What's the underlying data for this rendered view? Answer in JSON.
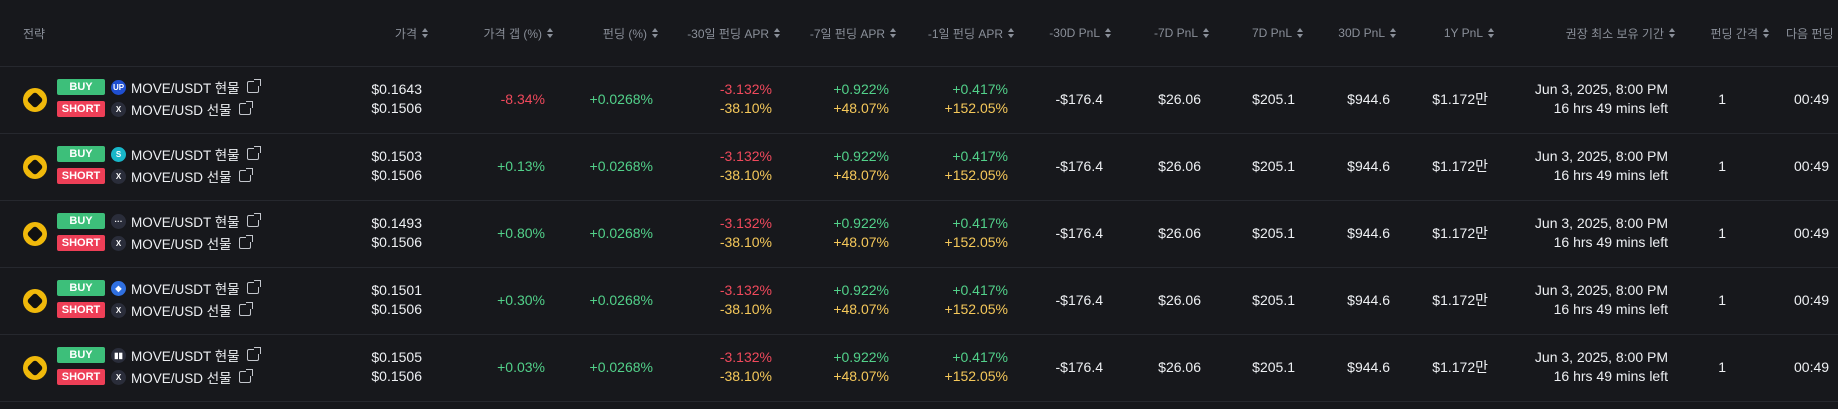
{
  "header": {
    "strategy": "전략",
    "price": "가격",
    "price_gap": "가격 갭 (%)",
    "funding": "펀딩 (%)",
    "apr_30d": "-30일 펀딩 APR",
    "apr_7d": "-7일 펀딩 APR",
    "apr_1d": "-1일 펀딩 APR",
    "pnl_neg30": "-30D PnL",
    "pnl_neg7": "-7D PnL",
    "pnl_7": "7D PnL",
    "pnl_30": "30D PnL",
    "pnl_1y": "1Y PnL",
    "min_hold": "권장 최소 보유 기간",
    "interval": "펀딩 간격",
    "next": "다음 펀딩"
  },
  "colors": {
    "buy": "#3dbf7a",
    "short": "#ee3f57",
    "positive": "#52d18a",
    "negative": "#f0495c",
    "accent": "#f5c85a"
  },
  "rows": [
    {
      "coin_icon": "move-coin-icon",
      "buy": {
        "badge": "BUY",
        "exchange_icon": "up-icon",
        "exchange_color": "#1f4fd1",
        "exchange_glyph": "UP",
        "pair": "MOVE/USDT 현물"
      },
      "short": {
        "badge": "SHORT",
        "exchange_icon": "x-icon",
        "exchange_color": "#2a2d3a",
        "exchange_glyph": "X",
        "pair": "MOVE/USD 선물"
      },
      "price_buy": "$0.1643",
      "price_short": "$0.1506",
      "price_gap": "-8.34%",
      "price_gap_sign": "red",
      "funding": "+0.0268%",
      "apr30_a": "-3.132%",
      "apr30_b": "-38.10%",
      "apr7_a": "+0.922%",
      "apr7_b": "+48.07%",
      "apr1_a": "+0.417%",
      "apr1_b": "+152.05%",
      "pnl_neg30": "-$176.4",
      "pnl_neg7": "$26.06",
      "pnl_7": "$205.1",
      "pnl_30": "$944.6",
      "pnl_1y": "$1.172만",
      "hold_date": "Jun 3, 2025, 8:00 PM",
      "hold_left": "16 hrs 49 mins left",
      "interval": "1",
      "next": "00:49"
    },
    {
      "coin_icon": "move-coin-icon",
      "buy": {
        "badge": "BUY",
        "exchange_icon": "swirl-icon",
        "exchange_color": "#18b7c9",
        "exchange_glyph": "S",
        "pair": "MOVE/USDT 현물"
      },
      "short": {
        "badge": "SHORT",
        "exchange_icon": "x-icon",
        "exchange_color": "#2a2d3a",
        "exchange_glyph": "X",
        "pair": "MOVE/USD 선물"
      },
      "price_buy": "$0.1503",
      "price_short": "$0.1506",
      "price_gap": "+0.13%",
      "price_gap_sign": "green",
      "funding": "+0.0268%",
      "apr30_a": "-3.132%",
      "apr30_b": "-38.10%",
      "apr7_a": "+0.922%",
      "apr7_b": "+48.07%",
      "apr1_a": "+0.417%",
      "apr1_b": "+152.05%",
      "pnl_neg30": "-$176.4",
      "pnl_neg7": "$26.06",
      "pnl_7": "$205.1",
      "pnl_30": "$944.6",
      "pnl_1y": "$1.172만",
      "hold_date": "Jun 3, 2025, 8:00 PM",
      "hold_left": "16 hrs 49 mins left",
      "interval": "1",
      "next": "00:49"
    },
    {
      "coin_icon": "move-coin-icon",
      "buy": {
        "badge": "BUY",
        "exchange_icon": "dots-icon",
        "exchange_color": "#2a2d3a",
        "exchange_glyph": "···",
        "pair": "MOVE/USDT 현물"
      },
      "short": {
        "badge": "SHORT",
        "exchange_icon": "x-icon",
        "exchange_color": "#2a2d3a",
        "exchange_glyph": "X",
        "pair": "MOVE/USD 선물"
      },
      "price_buy": "$0.1493",
      "price_short": "$0.1506",
      "price_gap": "+0.80%",
      "price_gap_sign": "green",
      "funding": "+0.0268%",
      "apr30_a": "-3.132%",
      "apr30_b": "-38.10%",
      "apr7_a": "+0.922%",
      "apr7_b": "+48.07%",
      "apr1_a": "+0.417%",
      "apr1_b": "+152.05%",
      "pnl_neg30": "-$176.4",
      "pnl_neg7": "$26.06",
      "pnl_7": "$205.1",
      "pnl_30": "$944.6",
      "pnl_1y": "$1.172만",
      "hold_date": "Jun 3, 2025, 8:00 PM",
      "hold_left": "16 hrs 49 mins left",
      "interval": "1",
      "next": "00:49"
    },
    {
      "coin_icon": "move-coin-icon",
      "buy": {
        "badge": "BUY",
        "exchange_icon": "drop-icon",
        "exchange_color": "#2f6fe0",
        "exchange_glyph": "◆",
        "pair": "MOVE/USDT 현물"
      },
      "short": {
        "badge": "SHORT",
        "exchange_icon": "x-icon",
        "exchange_color": "#2a2d3a",
        "exchange_glyph": "X",
        "pair": "MOVE/USD 선물"
      },
      "price_buy": "$0.1501",
      "price_short": "$0.1506",
      "price_gap": "+0.30%",
      "price_gap_sign": "green",
      "funding": "+0.0268%",
      "apr30_a": "-3.132%",
      "apr30_b": "-38.10%",
      "apr7_a": "+0.922%",
      "apr7_b": "+48.07%",
      "apr1_a": "+0.417%",
      "apr1_b": "+152.05%",
      "pnl_neg30": "-$176.4",
      "pnl_neg7": "$26.06",
      "pnl_7": "$205.1",
      "pnl_30": "$944.6",
      "pnl_1y": "$1.172만",
      "hold_date": "Jun 3, 2025, 8:00 PM",
      "hold_left": "16 hrs 49 mins left",
      "interval": "1",
      "next": "00:49"
    },
    {
      "coin_icon": "move-coin-icon",
      "buy": {
        "badge": "BUY",
        "exchange_icon": "bars-icon",
        "exchange_color": "#2a2d3a",
        "exchange_glyph": "▮▮",
        "pair": "MOVE/USDT 현물"
      },
      "short": {
        "badge": "SHORT",
        "exchange_icon": "x-icon",
        "exchange_color": "#2a2d3a",
        "exchange_glyph": "X",
        "pair": "MOVE/USD 선물"
      },
      "price_buy": "$0.1505",
      "price_short": "$0.1506",
      "price_gap": "+0.03%",
      "price_gap_sign": "green",
      "funding": "+0.0268%",
      "apr30_a": "-3.132%",
      "apr30_b": "-38.10%",
      "apr7_a": "+0.922%",
      "apr7_b": "+48.07%",
      "apr1_a": "+0.417%",
      "apr1_b": "+152.05%",
      "pnl_neg30": "-$176.4",
      "pnl_neg7": "$26.06",
      "pnl_7": "$205.1",
      "pnl_30": "$944.6",
      "pnl_1y": "$1.172만",
      "hold_date": "Jun 3, 2025, 8:00 PM",
      "hold_left": "16 hrs 49 mins left",
      "interval": "1",
      "next": "00:49"
    }
  ]
}
